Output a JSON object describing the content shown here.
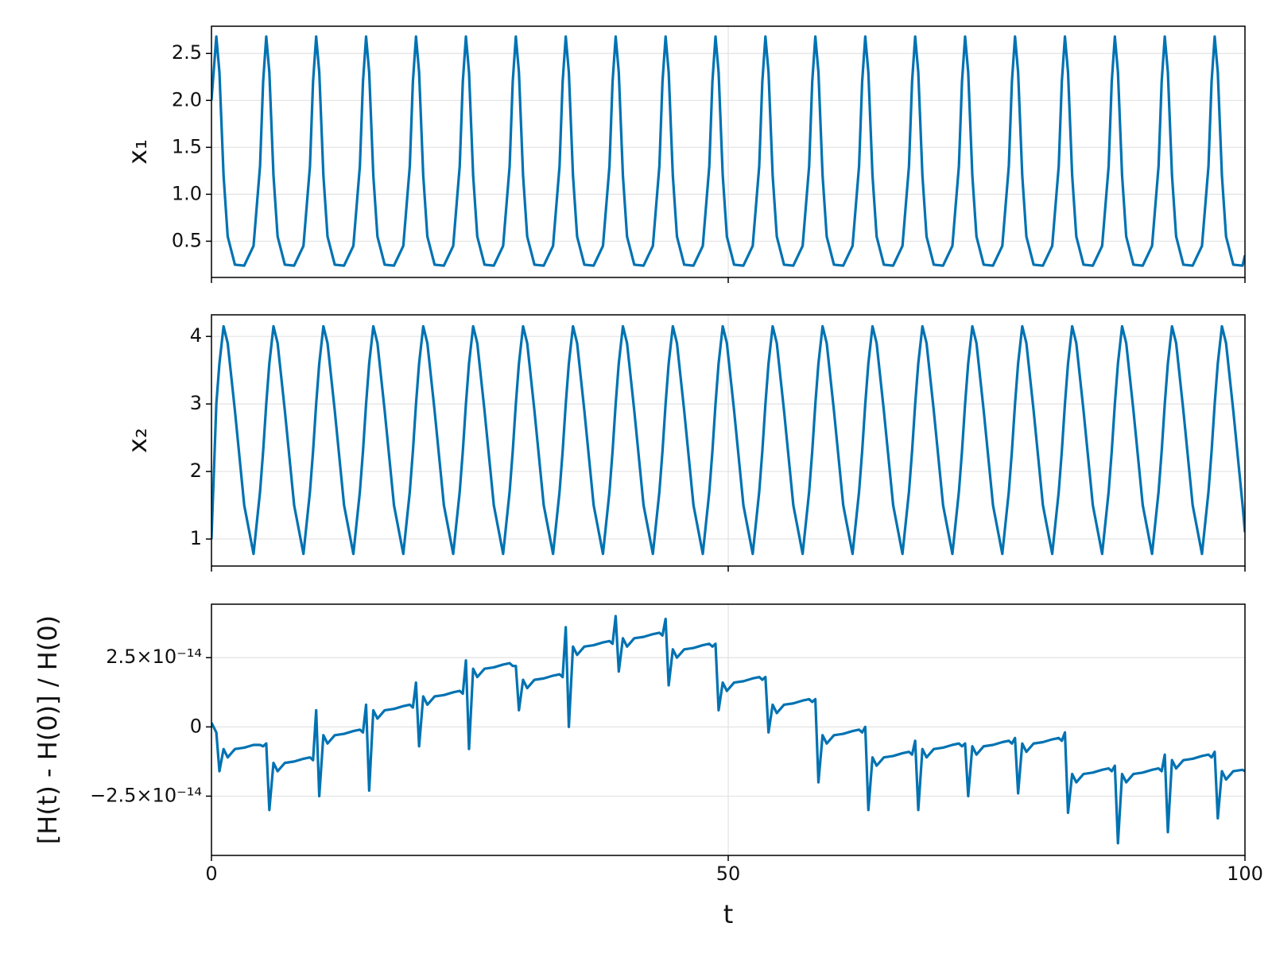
{
  "chart_data": {
    "type": "line",
    "xlabel": "t",
    "xlim": [
      0,
      100
    ],
    "xticks": [
      0,
      50,
      100
    ],
    "grid": true,
    "x": [
      0,
      0.47,
      0.77,
      1.17,
      1.57,
      2.27,
      3.17,
      4.07,
      4.7,
      5.0,
      5.3,
      5.6,
      6.0,
      6.4,
      7.1,
      8.0,
      8.9,
      9.53,
      9.83,
      10.13,
      10.43,
      10.83,
      11.23,
      11.93,
      12.83,
      13.73,
      14.36,
      14.66,
      14.96,
      15.26,
      15.66,
      16.06,
      16.76,
      17.66,
      18.56,
      19.19,
      19.49,
      19.79,
      20.09,
      20.49,
      20.89,
      21.59,
      22.49,
      23.39,
      24.02,
      24.32,
      24.62,
      24.92,
      25.32,
      25.72,
      26.42,
      27.32,
      28.22,
      28.85,
      29.15,
      29.45,
      29.75,
      30.15,
      30.55,
      31.25,
      32.15,
      33.05,
      33.68,
      33.98,
      34.28,
      34.58,
      34.98,
      35.38,
      36.08,
      36.98,
      37.88,
      38.51,
      38.81,
      39.11,
      39.41,
      39.81,
      40.21,
      40.91,
      41.81,
      42.71,
      43.34,
      43.64,
      43.94,
      44.24,
      44.64,
      45.04,
      45.74,
      46.64,
      47.54,
      48.17,
      48.47,
      48.77,
      49.07,
      49.47,
      49.87,
      50.57,
      51.47,
      52.37,
      53.0,
      53.3,
      53.6,
      53.9,
      54.3,
      54.7,
      55.4,
      56.3,
      57.2,
      57.83,
      58.13,
      58.43,
      58.73,
      59.13,
      59.53,
      60.23,
      61.13,
      62.03,
      62.66,
      62.96,
      63.26,
      63.56,
      63.96,
      64.36,
      65.06,
      65.96,
      66.86,
      67.49,
      67.79,
      68.09,
      68.39,
      68.79,
      69.19,
      69.89,
      70.79,
      71.69,
      72.32,
      72.62,
      72.92,
      73.22,
      73.62,
      74.02,
      74.72,
      75.62,
      76.52,
      77.15,
      77.45,
      77.75,
      78.05,
      78.45,
      78.85,
      79.55,
      80.45,
      81.35,
      81.98,
      82.28,
      82.58,
      82.88,
      83.28,
      83.68,
      84.38,
      85.28,
      86.18,
      86.81,
      87.11,
      87.41,
      87.71,
      88.11,
      88.51,
      89.21,
      90.11,
      91.01,
      91.64,
      91.94,
      92.24,
      92.54,
      92.94,
      93.34,
      94.04,
      94.94,
      95.84,
      96.47,
      96.77,
      97.07,
      97.37,
      97.77,
      98.17,
      98.87,
      99.77,
      100
    ],
    "panels": [
      {
        "ylabel": "x₁",
        "color": "#0072b2",
        "ylim": [
          0.114,
          2.79
        ],
        "yticks": [
          0.5,
          {
            "value": 1,
            "label": "1.0"
          },
          1.5,
          {
            "value": 2,
            "label": "2.0"
          },
          2.5
        ],
        "values": [
          2.0,
          2.68,
          2.3,
          1.2,
          0.55,
          0.25,
          0.24,
          0.45,
          1.3,
          2.2,
          2.68,
          2.3,
          1.2,
          0.55,
          0.25,
          0.24,
          0.45,
          1.3,
          2.2,
          2.68,
          2.3,
          1.2,
          0.55,
          0.25,
          0.24,
          0.45,
          1.3,
          2.2,
          2.68,
          2.3,
          1.2,
          0.55,
          0.25,
          0.24,
          0.45,
          1.3,
          2.2,
          2.68,
          2.3,
          1.2,
          0.55,
          0.25,
          0.24,
          0.45,
          1.3,
          2.2,
          2.68,
          2.3,
          1.2,
          0.55,
          0.25,
          0.24,
          0.45,
          1.3,
          2.2,
          2.68,
          2.3,
          1.2,
          0.55,
          0.25,
          0.24,
          0.45,
          1.3,
          2.2,
          2.68,
          2.3,
          1.2,
          0.55,
          0.25,
          0.24,
          0.45,
          1.3,
          2.2,
          2.68,
          2.3,
          1.2,
          0.55,
          0.25,
          0.24,
          0.45,
          1.3,
          2.2,
          2.68,
          2.3,
          1.2,
          0.55,
          0.25,
          0.24,
          0.45,
          1.3,
          2.2,
          2.68,
          2.3,
          1.2,
          0.55,
          0.25,
          0.24,
          0.45,
          1.3,
          2.2,
          2.68,
          2.3,
          1.2,
          0.55,
          0.25,
          0.24,
          0.45,
          1.3,
          2.2,
          2.68,
          2.3,
          1.2,
          0.55,
          0.25,
          0.24,
          0.45,
          1.3,
          2.2,
          2.68,
          2.3,
          1.2,
          0.55,
          0.25,
          0.24,
          0.45,
          1.3,
          2.2,
          2.68,
          2.3,
          1.2,
          0.55,
          0.25,
          0.24,
          0.45,
          1.3,
          2.2,
          2.68,
          2.3,
          1.2,
          0.55,
          0.25,
          0.24,
          0.45,
          1.3,
          2.2,
          2.68,
          2.3,
          1.2,
          0.55,
          0.25,
          0.24,
          0.45,
          1.3,
          2.2,
          2.68,
          2.3,
          1.2,
          0.55,
          0.25,
          0.24,
          0.45,
          1.3,
          2.2,
          2.68,
          2.3,
          1.2,
          0.55,
          0.25,
          0.24,
          0.45,
          1.3,
          2.2,
          2.68,
          2.3,
          1.2,
          0.55,
          0.25,
          0.24,
          0.45,
          1.3,
          2.2,
          2.68,
          2.3,
          1.2,
          0.55,
          0.25,
          0.24,
          0.35
        ]
      },
      {
        "ylabel": "x₂",
        "color": "#0072b2",
        "ylim": [
          0.6,
          4.32
        ],
        "yticks": [
          1,
          2,
          3,
          4
        ],
        "values": [
          1.0,
          3.0,
          3.6,
          4.15,
          3.9,
          2.9,
          1.5,
          0.78,
          1.7,
          2.3,
          3.0,
          3.6,
          4.15,
          3.9,
          2.9,
          1.5,
          0.78,
          1.7,
          2.3,
          3.0,
          3.6,
          4.15,
          3.9,
          2.9,
          1.5,
          0.78,
          1.7,
          2.3,
          3.0,
          3.6,
          4.15,
          3.9,
          2.9,
          1.5,
          0.78,
          1.7,
          2.3,
          3.0,
          3.6,
          4.15,
          3.9,
          2.9,
          1.5,
          0.78,
          1.7,
          2.3,
          3.0,
          3.6,
          4.15,
          3.9,
          2.9,
          1.5,
          0.78,
          1.7,
          2.3,
          3.0,
          3.6,
          4.15,
          3.9,
          2.9,
          1.5,
          0.78,
          1.7,
          2.3,
          3.0,
          3.6,
          4.15,
          3.9,
          2.9,
          1.5,
          0.78,
          1.7,
          2.3,
          3.0,
          3.6,
          4.15,
          3.9,
          2.9,
          1.5,
          0.78,
          1.7,
          2.3,
          3.0,
          3.6,
          4.15,
          3.9,
          2.9,
          1.5,
          0.78,
          1.7,
          2.3,
          3.0,
          3.6,
          4.15,
          3.9,
          2.9,
          1.5,
          0.78,
          1.7,
          2.3,
          3.0,
          3.6,
          4.15,
          3.9,
          2.9,
          1.5,
          0.78,
          1.7,
          2.3,
          3.0,
          3.6,
          4.15,
          3.9,
          2.9,
          1.5,
          0.78,
          1.7,
          2.3,
          3.0,
          3.6,
          4.15,
          3.9,
          2.9,
          1.5,
          0.78,
          1.7,
          2.3,
          3.0,
          3.6,
          4.15,
          3.9,
          2.9,
          1.5,
          0.78,
          1.7,
          2.3,
          3.0,
          3.6,
          4.15,
          3.9,
          2.9,
          1.5,
          0.78,
          1.7,
          2.3,
          3.0,
          3.6,
          4.15,
          3.9,
          2.9,
          1.5,
          0.78,
          1.7,
          2.3,
          3.0,
          3.6,
          4.15,
          3.9,
          2.9,
          1.5,
          0.78,
          1.7,
          2.3,
          3.0,
          3.6,
          4.15,
          3.9,
          2.9,
          1.5,
          0.78,
          1.7,
          2.3,
          3.0,
          3.6,
          4.15,
          3.9,
          2.9,
          1.5,
          0.78,
          1.7,
          2.3,
          3.0,
          3.6,
          4.15,
          3.9,
          2.9,
          1.5,
          1.1
        ]
      },
      {
        "ylabel": "[H(t) - H(0)] / H(0)",
        "color": "#0072b2",
        "ylim": [
          -4.64e-14,
          4.43e-14
        ],
        "yticks": [
          {
            "value": -2.5e-14,
            "label": "−2.5×10⁻¹⁴"
          },
          0,
          {
            "value": 2.5e-14,
            "label": "2.5×10⁻¹⁴"
          }
        ],
        "values": [
          1.5e-15,
          -2e-15,
          -1.6e-14,
          -8e-15,
          -1.1e-14,
          -8e-15,
          -7.5e-15,
          -6.5e-15,
          -6.5e-15,
          -7e-15,
          -6e-15,
          -3e-14,
          -1.3e-14,
          -1.6e-14,
          -1.3e-14,
          -1.25e-14,
          -1.15e-14,
          -1.1e-14,
          -1.2e-14,
          6e-15,
          -2.5e-14,
          -3e-15,
          -6e-15,
          -3e-15,
          -2.5e-15,
          -1.5e-15,
          -1e-15,
          -2e-15,
          8e-15,
          -2.3e-14,
          6e-15,
          3e-15,
          6e-15,
          6.5e-15,
          7.5e-15,
          8e-15,
          7e-15,
          1.6e-14,
          -7e-15,
          1.1e-14,
          8e-15,
          1.1e-14,
          1.15e-14,
          1.25e-14,
          1.3e-14,
          1.2e-14,
          2.4e-14,
          -8e-15,
          2.1e-14,
          1.8e-14,
          2.1e-14,
          2.15e-14,
          2.25e-14,
          2.3e-14,
          2.2e-14,
          2.2e-14,
          6e-15,
          1.7e-14,
          1.4e-14,
          1.7e-14,
          1.75e-14,
          1.85e-14,
          1.9e-14,
          1.8e-14,
          3.6e-14,
          0.0,
          2.9e-14,
          2.6e-14,
          2.9e-14,
          2.95e-14,
          3.05e-14,
          3.1e-14,
          3e-14,
          4e-14,
          2e-14,
          3.2e-14,
          2.9e-14,
          3.2e-14,
          3.25e-14,
          3.35e-14,
          3.4e-14,
          3.3e-14,
          3.9e-14,
          1.5e-14,
          2.8e-14,
          2.5e-14,
          2.8e-14,
          2.85e-14,
          2.95e-14,
          3e-14,
          2.9e-14,
          3e-14,
          6e-15,
          1.6e-14,
          1.3e-14,
          1.6e-14,
          1.65e-14,
          1.75e-14,
          1.8e-14,
          1.7e-14,
          1.8e-14,
          -2e-15,
          8e-15,
          5e-15,
          8e-15,
          8.5e-15,
          9.5e-15,
          1e-14,
          9e-15,
          1e-14,
          -2e-14,
          -3e-15,
          -6e-15,
          -3e-15,
          -2.5e-15,
          -1.5e-15,
          -1e-15,
          -2e-15,
          0.0,
          -3e-14,
          -1.1e-14,
          -1.4e-14,
          -1.1e-14,
          -1.05e-14,
          -9.5e-15,
          -9e-15,
          -1e-14,
          -5e-15,
          -3e-14,
          -8e-15,
          -1.1e-14,
          -8e-15,
          -7.5e-15,
          -6.5e-15,
          -6e-15,
          -7e-15,
          -6e-15,
          -2.5e-14,
          -7e-15,
          -1e-14,
          -7e-15,
          -6.5e-15,
          -5.5e-15,
          -5e-15,
          -6e-15,
          -4e-15,
          -2.4e-14,
          -6e-15,
          -9e-15,
          -6e-15,
          -5.5e-15,
          -4.5e-15,
          -4e-15,
          -5e-15,
          -2e-15,
          -3.1e-14,
          -1.7e-14,
          -2e-14,
          -1.7e-14,
          -1.65e-14,
          -1.55e-14,
          -1.5e-14,
          -1.6e-14,
          -1.4e-14,
          -4.2e-14,
          -1.7e-14,
          -2e-14,
          -1.7e-14,
          -1.65e-14,
          -1.55e-14,
          -1.5e-14,
          -1.6e-14,
          -1e-14,
          -3.8e-14,
          -1.2e-14,
          -1.5e-14,
          -1.2e-14,
          -1.15e-14,
          -1.05e-14,
          -1e-14,
          -1.1e-14,
          -9e-15,
          -3.3e-14,
          -1.6e-14,
          -1.9e-14,
          -1.6e-14,
          -1.55e-14,
          -1.6e-14
        ]
      }
    ]
  }
}
